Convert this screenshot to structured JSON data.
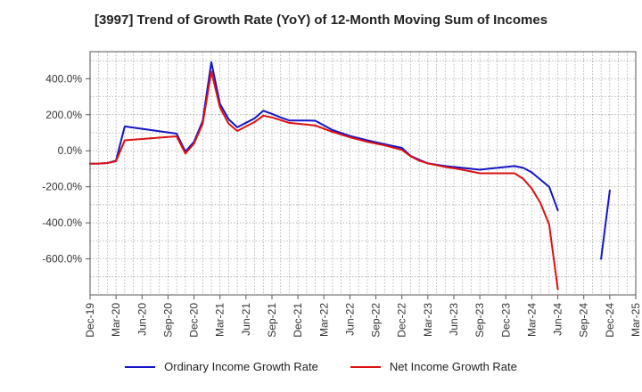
{
  "chart_data": {
    "type": "line",
    "title": "[3997]  Trend of Growth Rate (YoY) of 12-Month Moving Sum of Incomes",
    "xlabel": "",
    "ylabel": "",
    "ylim": [
      -800,
      550
    ],
    "y_ticks": [
      400,
      200,
      0,
      -200,
      -400,
      -600
    ],
    "y_tick_labels": [
      "400.0%",
      "200.0%",
      "0.0%",
      "-200.0%",
      "-400.0%",
      "-600.0%"
    ],
    "x_ticks": [
      "Dec-19",
      "Mar-20",
      "Jun-20",
      "Sep-20",
      "Dec-20",
      "Mar-21",
      "Jun-21",
      "Sep-21",
      "Dec-21",
      "Mar-22",
      "Jun-22",
      "Sep-22",
      "Dec-22",
      "Mar-23",
      "Jun-23",
      "Sep-23",
      "Dec-23",
      "Mar-24",
      "Jun-24",
      "Sep-24",
      "Dec-24",
      "Mar-25"
    ],
    "x_start": "Dec-19",
    "x_end": "Mar-25",
    "grid": true,
    "legend_position": "bottom",
    "series": [
      {
        "name": "Ordinary Income Growth Rate",
        "color": "#1515c8",
        "points": [
          [
            "Dec-19",
            -72
          ],
          [
            "Jan-20",
            -71
          ],
          [
            "Feb-20",
            -68
          ],
          [
            "Mar-20",
            -55
          ],
          [
            "Apr-20",
            135
          ],
          [
            "Oct-20",
            95
          ],
          [
            "Nov-20",
            -5
          ],
          [
            "Dec-20",
            50
          ],
          [
            "Jan-21",
            165
          ],
          [
            "Feb-21",
            492
          ],
          [
            "Mar-21",
            260
          ],
          [
            "Apr-21",
            175
          ],
          [
            "May-21",
            130
          ],
          [
            "Jul-21",
            180
          ],
          [
            "Aug-21",
            222
          ],
          [
            "Sep-21",
            205
          ],
          [
            "Oct-21",
            185
          ],
          [
            "Nov-21",
            168
          ],
          [
            "Jan-22",
            168
          ],
          [
            "Feb-22",
            167
          ],
          [
            "Apr-22",
            115
          ],
          [
            "Jun-22",
            82
          ],
          [
            "Aug-22",
            58
          ],
          [
            "Oct-22",
            36
          ],
          [
            "Dec-22",
            16
          ],
          [
            "Jan-23",
            -28
          ],
          [
            "Feb-23",
            -50
          ],
          [
            "Mar-23",
            -70
          ],
          [
            "May-23",
            -85
          ],
          [
            "Jul-23",
            -95
          ],
          [
            "Sep-23",
            -105
          ],
          [
            "Oct-23",
            -100
          ],
          [
            "Nov-23",
            -95
          ],
          [
            "Jan-24",
            -85
          ],
          [
            "Feb-24",
            -95
          ],
          [
            "Mar-24",
            -120
          ],
          [
            "Apr-24",
            -160
          ],
          [
            "May-24",
            -200
          ],
          [
            "Jun-24",
            -330
          ],
          null,
          [
            "Nov-24",
            -600
          ],
          [
            "Dec-24",
            -220
          ]
        ]
      },
      {
        "name": "Net Income Growth Rate",
        "color": "#dd1111",
        "points": [
          [
            "Dec-19",
            -72
          ],
          [
            "Jan-20",
            -71
          ],
          [
            "Feb-20",
            -68
          ],
          [
            "Mar-20",
            -58
          ],
          [
            "Apr-20",
            58
          ],
          [
            "Oct-20",
            80
          ],
          [
            "Nov-20",
            -15
          ],
          [
            "Dec-20",
            40
          ],
          [
            "Jan-21",
            150
          ],
          [
            "Feb-21",
            440
          ],
          [
            "Mar-21",
            240
          ],
          [
            "Apr-21",
            150
          ],
          [
            "May-21",
            110
          ],
          [
            "Jul-21",
            160
          ],
          [
            "Aug-21",
            195
          ],
          [
            "Sep-21",
            185
          ],
          [
            "Oct-21",
            170
          ],
          [
            "Nov-21",
            155
          ],
          [
            "Jan-22",
            145
          ],
          [
            "Feb-22",
            140
          ],
          [
            "Apr-22",
            105
          ],
          [
            "Jun-22",
            75
          ],
          [
            "Aug-22",
            50
          ],
          [
            "Oct-22",
            30
          ],
          [
            "Dec-22",
            5
          ],
          [
            "Jan-23",
            -30
          ],
          [
            "Feb-23",
            -55
          ],
          [
            "Mar-23",
            -70
          ],
          [
            "May-23",
            -90
          ],
          [
            "Jul-23",
            -105
          ],
          [
            "Sep-23",
            -125
          ],
          [
            "Oct-23",
            -125
          ],
          [
            "Nov-23",
            -125
          ],
          [
            "Jan-24",
            -125
          ],
          [
            "Feb-24",
            -155
          ],
          [
            "Mar-24",
            -210
          ],
          [
            "Apr-24",
            -290
          ],
          [
            "May-24",
            -410
          ],
          [
            "Jun-24",
            -770
          ]
        ]
      }
    ]
  }
}
